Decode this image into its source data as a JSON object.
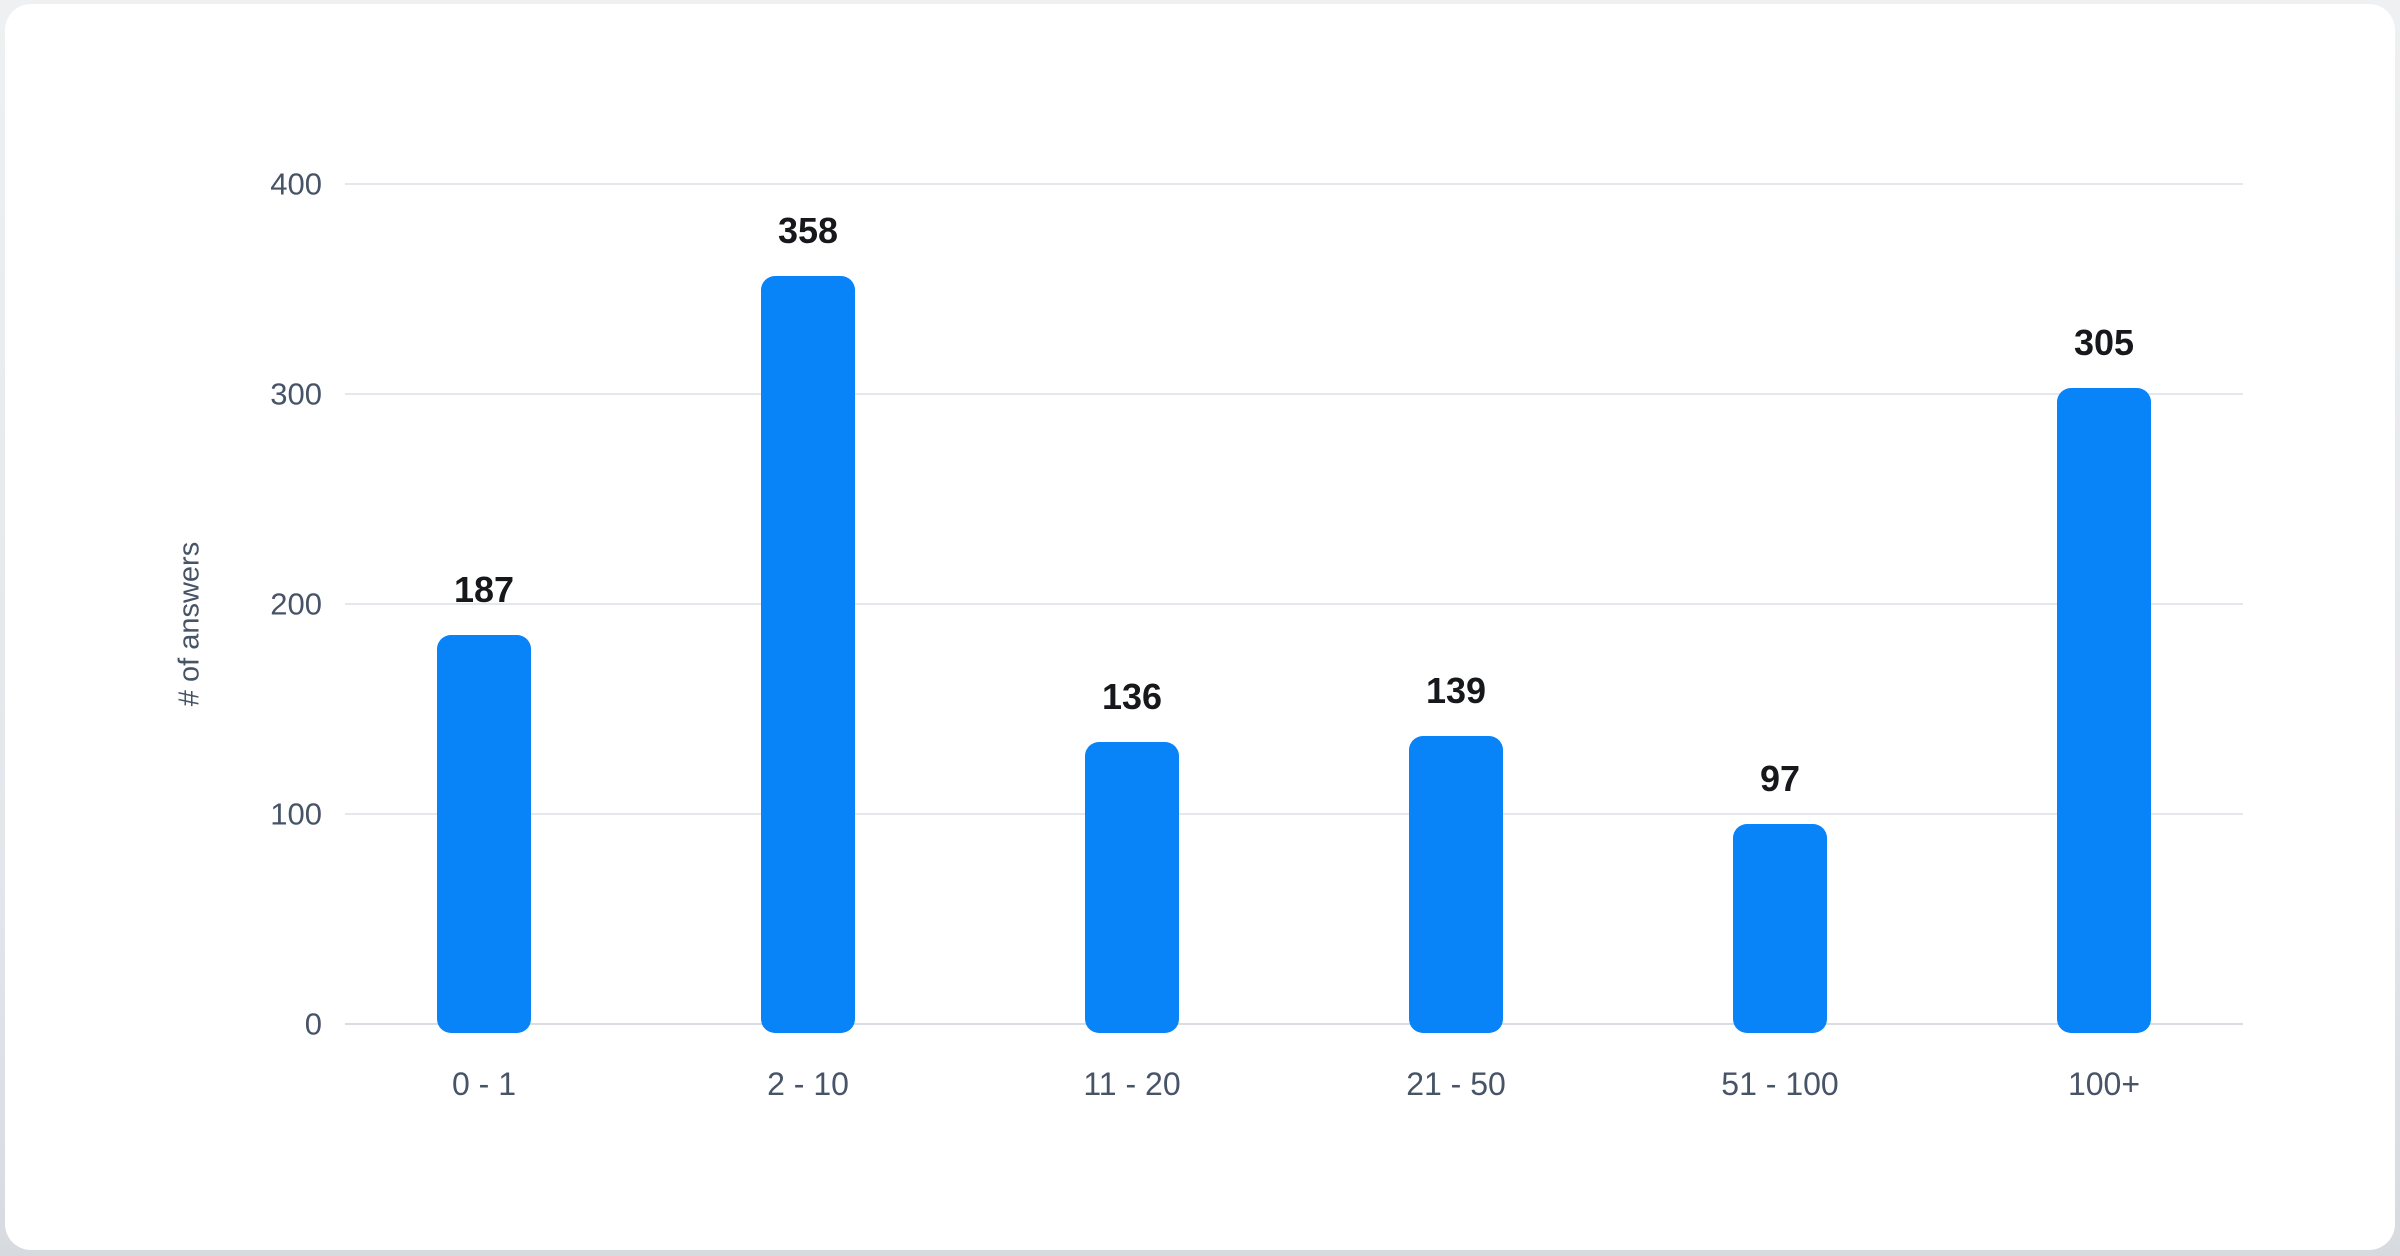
{
  "colors": {
    "bar": "#0884f8",
    "grid": "#e4e7ec",
    "grid_zero": "#d9dce1",
    "axis_text": "#475467",
    "value_text": "#17181c",
    "card_bg": "#ffffff",
    "page_bg": "#e3e6ea"
  },
  "chart_data": {
    "type": "bar",
    "title": "",
    "categories": [
      "0 - 1",
      "2 - 10",
      "11 - 20",
      "21 - 50",
      "51 - 100",
      "100+"
    ],
    "values": [
      187,
      358,
      136,
      139,
      97,
      305
    ],
    "value_labels": [
      "187",
      "358",
      "136",
      "139",
      "97",
      "305"
    ],
    "xlabel": "",
    "ylabel": "# of answers",
    "ylim": [
      0,
      400
    ],
    "yticks": [
      0,
      100,
      200,
      300,
      400
    ],
    "grid": "horizontal-only",
    "legend": "none",
    "bar_corner_radius": 14
  }
}
